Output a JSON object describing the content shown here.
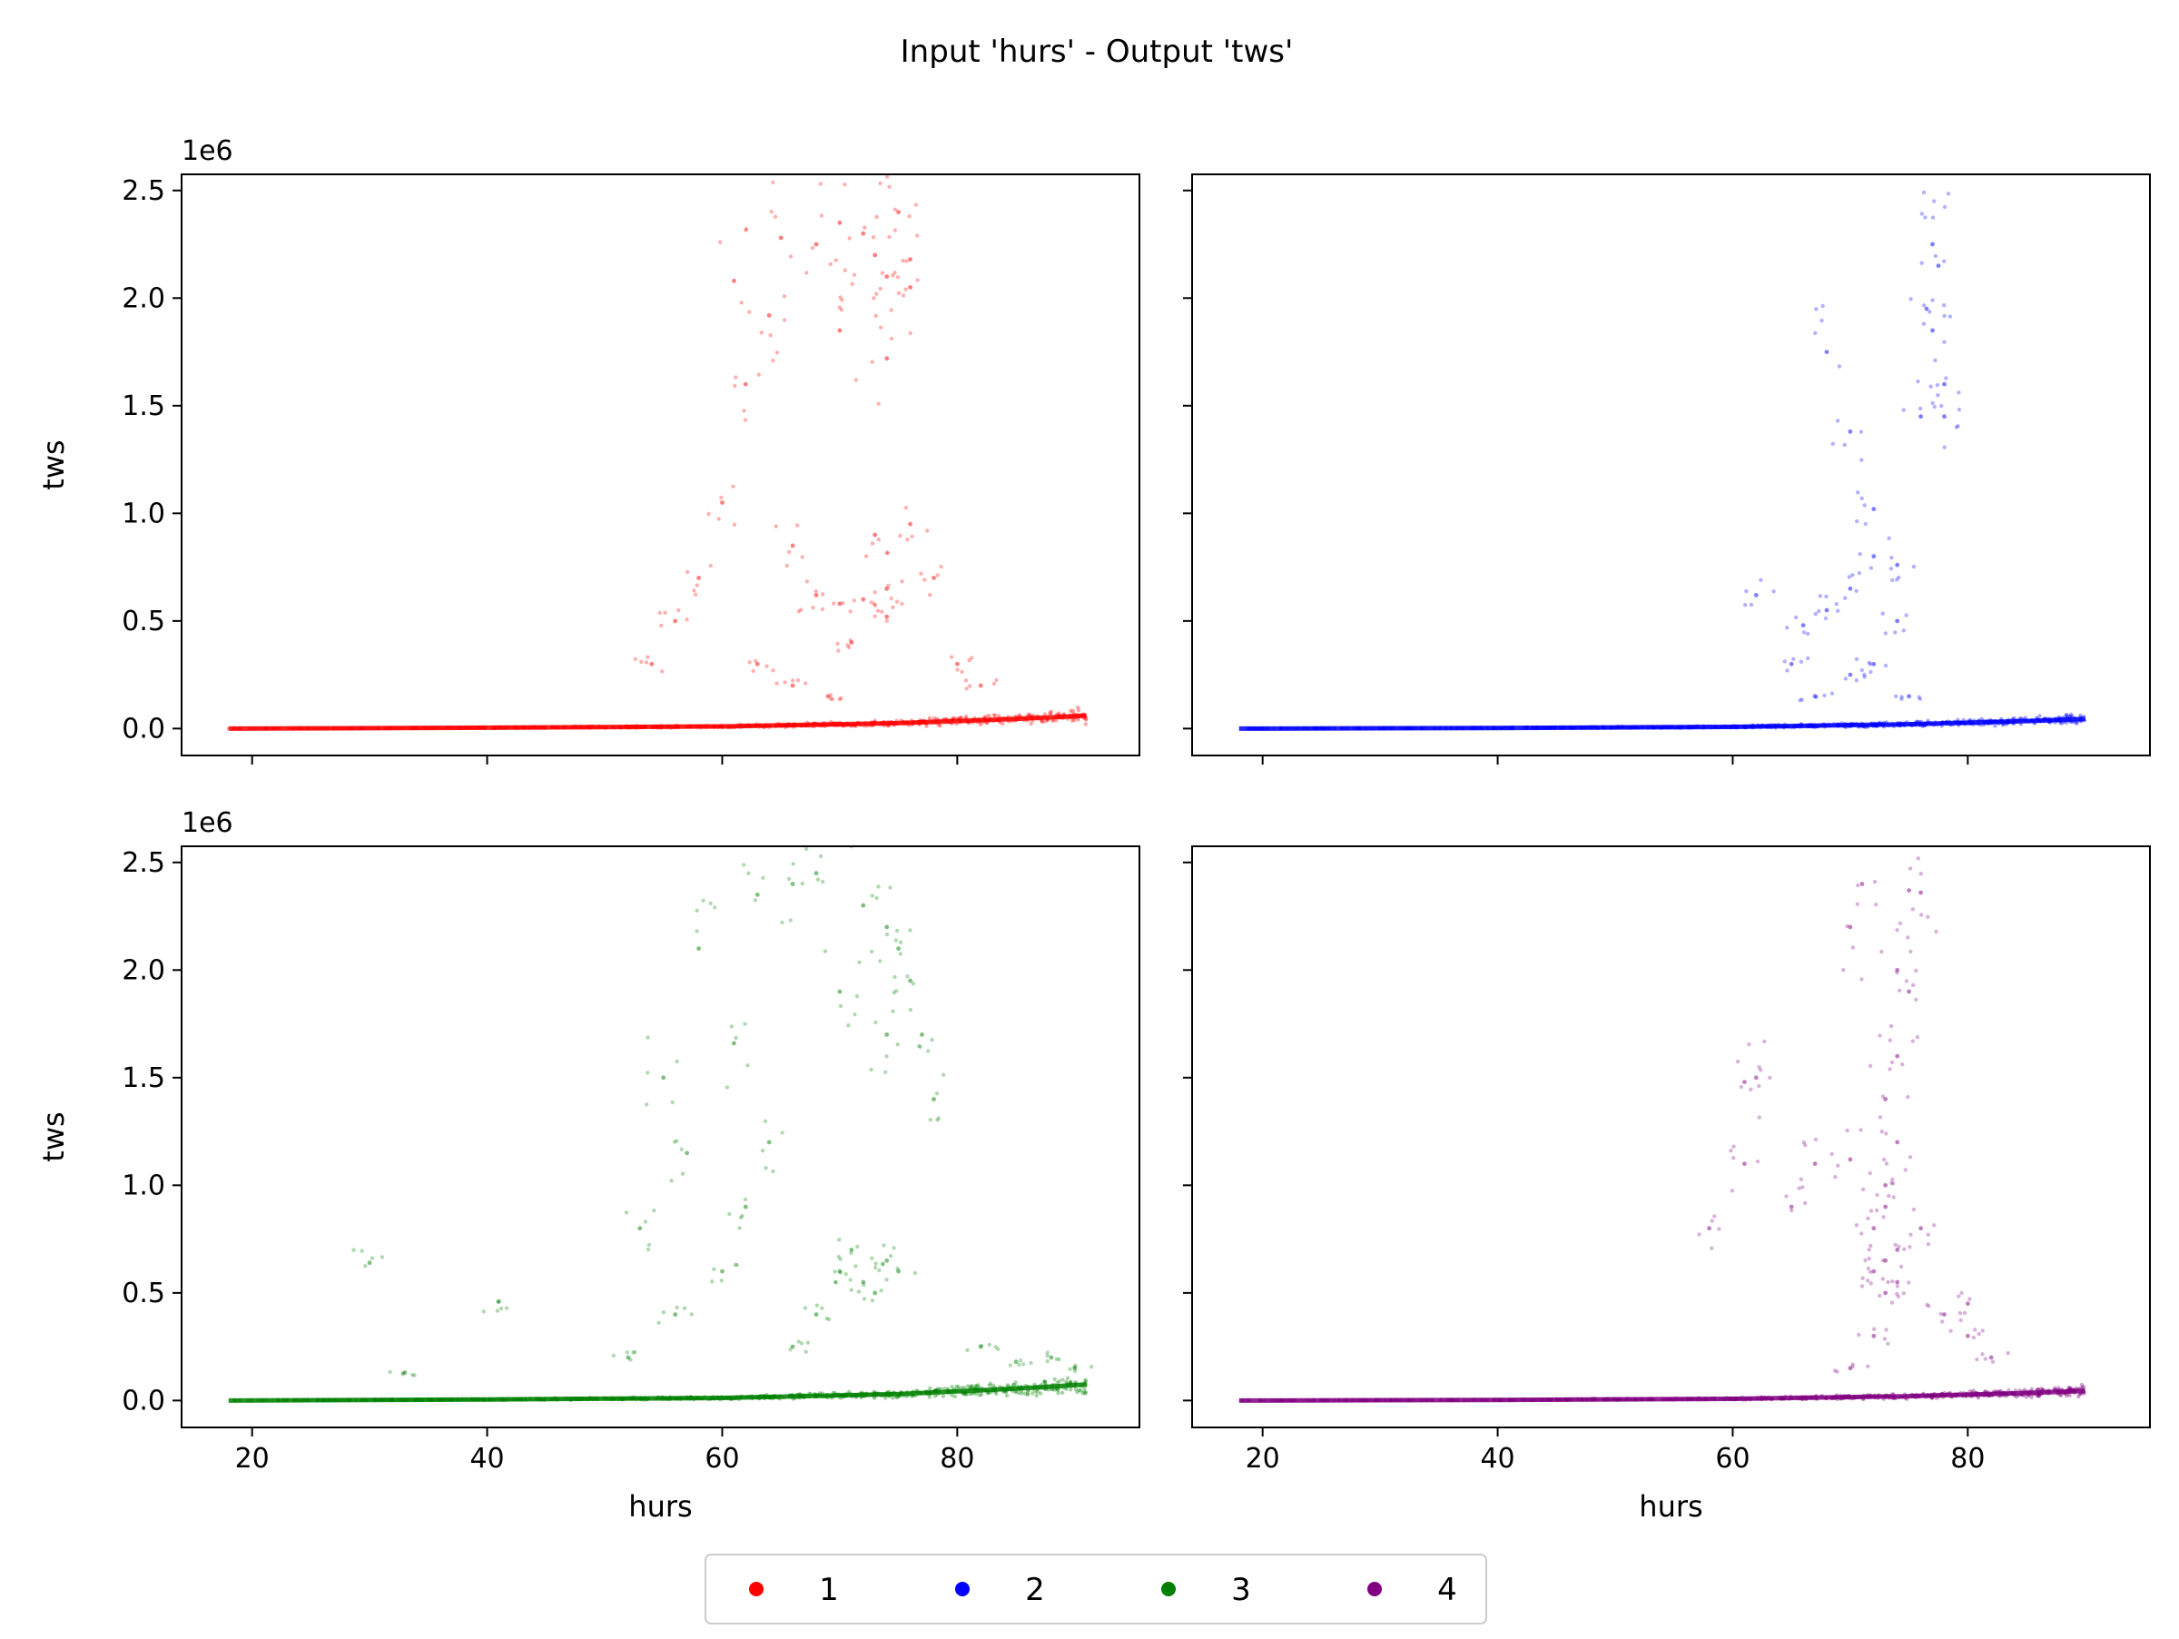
{
  "title": "Input 'hurs' - Output 'tws'",
  "chart_data": [
    {
      "type": "scatter",
      "panel": "top-left",
      "series_name": "1",
      "color": "#ff0000",
      "xlabel": "",
      "ylabel": "tws",
      "offset_text": "1e6",
      "xlim": [
        14,
        95.5
      ],
      "ylim": [
        -125000,
        2575000
      ],
      "x_ticks": [
        20,
        40,
        60,
        80
      ],
      "x_tick_labels": [
        "",
        "",
        "",
        ""
      ],
      "y_ticks": [
        0,
        500000,
        1000000,
        1500000,
        2000000,
        2500000
      ],
      "y_tick_labels": [
        "0.0",
        "0.5",
        "1.0",
        "1.5",
        "2.0",
        "2.5"
      ],
      "baseline": [
        [
          18,
          0
        ],
        [
          40,
          4000
        ],
        [
          60,
          10000
        ],
        [
          75,
          25000
        ],
        [
          85,
          45000
        ],
        [
          91,
          60000
        ]
      ],
      "points": [
        [
          61,
          2080000
        ],
        [
          65,
          2280000
        ],
        [
          68,
          2250000
        ],
        [
          70,
          2350000
        ],
        [
          72,
          2300000
        ],
        [
          73,
          2200000
        ],
        [
          74,
          2100000
        ],
        [
          75,
          2400000
        ],
        [
          76,
          2180000
        ],
        [
          76,
          2050000
        ],
        [
          74,
          1720000
        ],
        [
          70,
          1850000
        ],
        [
          64,
          1920000
        ],
        [
          62,
          1600000
        ],
        [
          60,
          1050000
        ],
        [
          58,
          700000
        ],
        [
          56,
          500000
        ],
        [
          54,
          300000
        ],
        [
          66,
          850000
        ],
        [
          68,
          620000
        ],
        [
          70,
          580000
        ],
        [
          72,
          600000
        ],
        [
          74,
          650000
        ],
        [
          74,
          520000
        ],
        [
          71,
          400000
        ],
        [
          76,
          950000
        ],
        [
          78,
          700000
        ],
        [
          80,
          300000
        ],
        [
          82,
          200000
        ],
        [
          63,
          300000
        ],
        [
          66,
          200000
        ],
        [
          69,
          150000
        ],
        [
          73,
          900000
        ]
      ],
      "grid": false
    },
    {
      "type": "scatter",
      "panel": "top-right",
      "series_name": "2",
      "color": "#0000ff",
      "xlabel": "",
      "ylabel": "",
      "offset_text": "",
      "xlim": [
        14,
        95.5
      ],
      "ylim": [
        -125000,
        2575000
      ],
      "x_ticks": [
        20,
        40,
        60,
        80
      ],
      "x_tick_labels": [
        "",
        "",
        "",
        ""
      ],
      "y_ticks": [
        0,
        500000,
        1000000,
        1500000,
        2000000,
        2500000
      ],
      "y_tick_labels": [
        "",
        "",
        "",
        "",
        "",
        ""
      ],
      "baseline": [
        [
          18,
          0
        ],
        [
          40,
          3000
        ],
        [
          60,
          8000
        ],
        [
          75,
          20000
        ],
        [
          85,
          35000
        ],
        [
          90,
          45000
        ]
      ],
      "points": [
        [
          77,
          2250000
        ],
        [
          77.5,
          2150000
        ],
        [
          76.5,
          1950000
        ],
        [
          77,
          1850000
        ],
        [
          78,
          1600000
        ],
        [
          78,
          1450000
        ],
        [
          76,
          1450000
        ],
        [
          70,
          1380000
        ],
        [
          68,
          1750000
        ],
        [
          72,
          1020000
        ],
        [
          72,
          800000
        ],
        [
          74,
          760000
        ],
        [
          70,
          650000
        ],
        [
          68,
          550000
        ],
        [
          66,
          480000
        ],
        [
          74,
          500000
        ],
        [
          72,
          300000
        ],
        [
          70,
          250000
        ],
        [
          62,
          620000
        ],
        [
          65,
          300000
        ],
        [
          67,
          150000
        ],
        [
          75,
          150000
        ]
      ],
      "grid": false
    },
    {
      "type": "scatter",
      "panel": "bottom-left",
      "series_name": "3",
      "color": "#008000",
      "xlabel": "hurs",
      "ylabel": "tws",
      "offset_text": "1e6",
      "xlim": [
        14,
        95.5
      ],
      "ylim": [
        -125000,
        2575000
      ],
      "x_ticks": [
        20,
        40,
        60,
        80
      ],
      "x_tick_labels": [
        "20",
        "40",
        "60",
        "80"
      ],
      "y_ticks": [
        0,
        500000,
        1000000,
        1500000,
        2000000,
        2500000
      ],
      "y_tick_labels": [
        "0.0",
        "0.5",
        "1.0",
        "1.5",
        "2.0",
        "2.5"
      ],
      "baseline": [
        [
          18,
          0
        ],
        [
          40,
          5000
        ],
        [
          60,
          12000
        ],
        [
          75,
          30000
        ],
        [
          85,
          55000
        ],
        [
          91,
          75000
        ]
      ],
      "points": [
        [
          30,
          640000
        ],
        [
          41,
          460000
        ],
        [
          33,
          130000
        ],
        [
          55,
          1500000
        ],
        [
          58,
          2100000
        ],
        [
          61,
          1660000
        ],
        [
          63,
          2350000
        ],
        [
          66,
          2400000
        ],
        [
          68,
          2450000
        ],
        [
          72,
          2300000
        ],
        [
          74,
          2200000
        ],
        [
          75,
          2100000
        ],
        [
          76,
          1950000
        ],
        [
          77,
          1700000
        ],
        [
          78,
          1400000
        ],
        [
          74,
          1700000
        ],
        [
          70,
          1900000
        ],
        [
          64,
          1200000
        ],
        [
          62,
          900000
        ],
        [
          60,
          600000
        ],
        [
          57,
          1150000
        ],
        [
          53,
          800000
        ],
        [
          52,
          200000
        ],
        [
          56,
          400000
        ],
        [
          70,
          600000
        ],
        [
          72,
          550000
        ],
        [
          74,
          650000
        ],
        [
          71,
          700000
        ],
        [
          73,
          500000
        ],
        [
          68,
          400000
        ],
        [
          66,
          250000
        ],
        [
          75,
          600000
        ],
        [
          82,
          250000
        ],
        [
          85,
          180000
        ],
        [
          88,
          200000
        ],
        [
          90,
          150000
        ]
      ],
      "grid": false
    },
    {
      "type": "scatter",
      "panel": "bottom-right",
      "series_name": "4",
      "color": "#800080",
      "xlabel": "hurs",
      "ylabel": "",
      "offset_text": "",
      "xlim": [
        14,
        95.5
      ],
      "ylim": [
        -125000,
        2575000
      ],
      "x_ticks": [
        20,
        40,
        60,
        80
      ],
      "x_tick_labels": [
        "20",
        "40",
        "60",
        "80"
      ],
      "y_ticks": [
        0,
        500000,
        1000000,
        1500000,
        2000000,
        2500000
      ],
      "y_tick_labels": [
        "",
        "",
        "",
        "",
        "",
        ""
      ],
      "baseline": [
        [
          18,
          0
        ],
        [
          40,
          3000
        ],
        [
          60,
          8000
        ],
        [
          75,
          20000
        ],
        [
          85,
          35000
        ],
        [
          90,
          45000
        ]
      ],
      "points": [
        [
          71,
          2400000
        ],
        [
          70,
          2200000
        ],
        [
          75,
          2370000
        ],
        [
          76,
          2360000
        ],
        [
          74,
          2000000
        ],
        [
          75,
          1900000
        ],
        [
          74,
          1600000
        ],
        [
          73,
          1400000
        ],
        [
          74,
          1200000
        ],
        [
          73,
          1000000
        ],
        [
          73,
          900000
        ],
        [
          72,
          800000
        ],
        [
          74,
          700000
        ],
        [
          73,
          650000
        ],
        [
          72,
          600000
        ],
        [
          74,
          550000
        ],
        [
          73,
          500000
        ],
        [
          61,
          1480000
        ],
        [
          62,
          1500000
        ],
        [
          61,
          1100000
        ],
        [
          58,
          800000
        ],
        [
          67,
          1100000
        ],
        [
          65,
          900000
        ],
        [
          70,
          1120000
        ],
        [
          76,
          800000
        ],
        [
          78,
          400000
        ],
        [
          80,
          300000
        ],
        [
          80,
          450000
        ],
        [
          82,
          200000
        ],
        [
          72,
          300000
        ],
        [
          70,
          150000
        ]
      ],
      "grid": false
    }
  ],
  "legend": {
    "placement": "bottom-center",
    "entries": [
      {
        "label": "1",
        "color": "#ff0000"
      },
      {
        "label": "2",
        "color": "#0000ff"
      },
      {
        "label": "3",
        "color": "#008000"
      },
      {
        "label": "4",
        "color": "#800080"
      }
    ]
  }
}
